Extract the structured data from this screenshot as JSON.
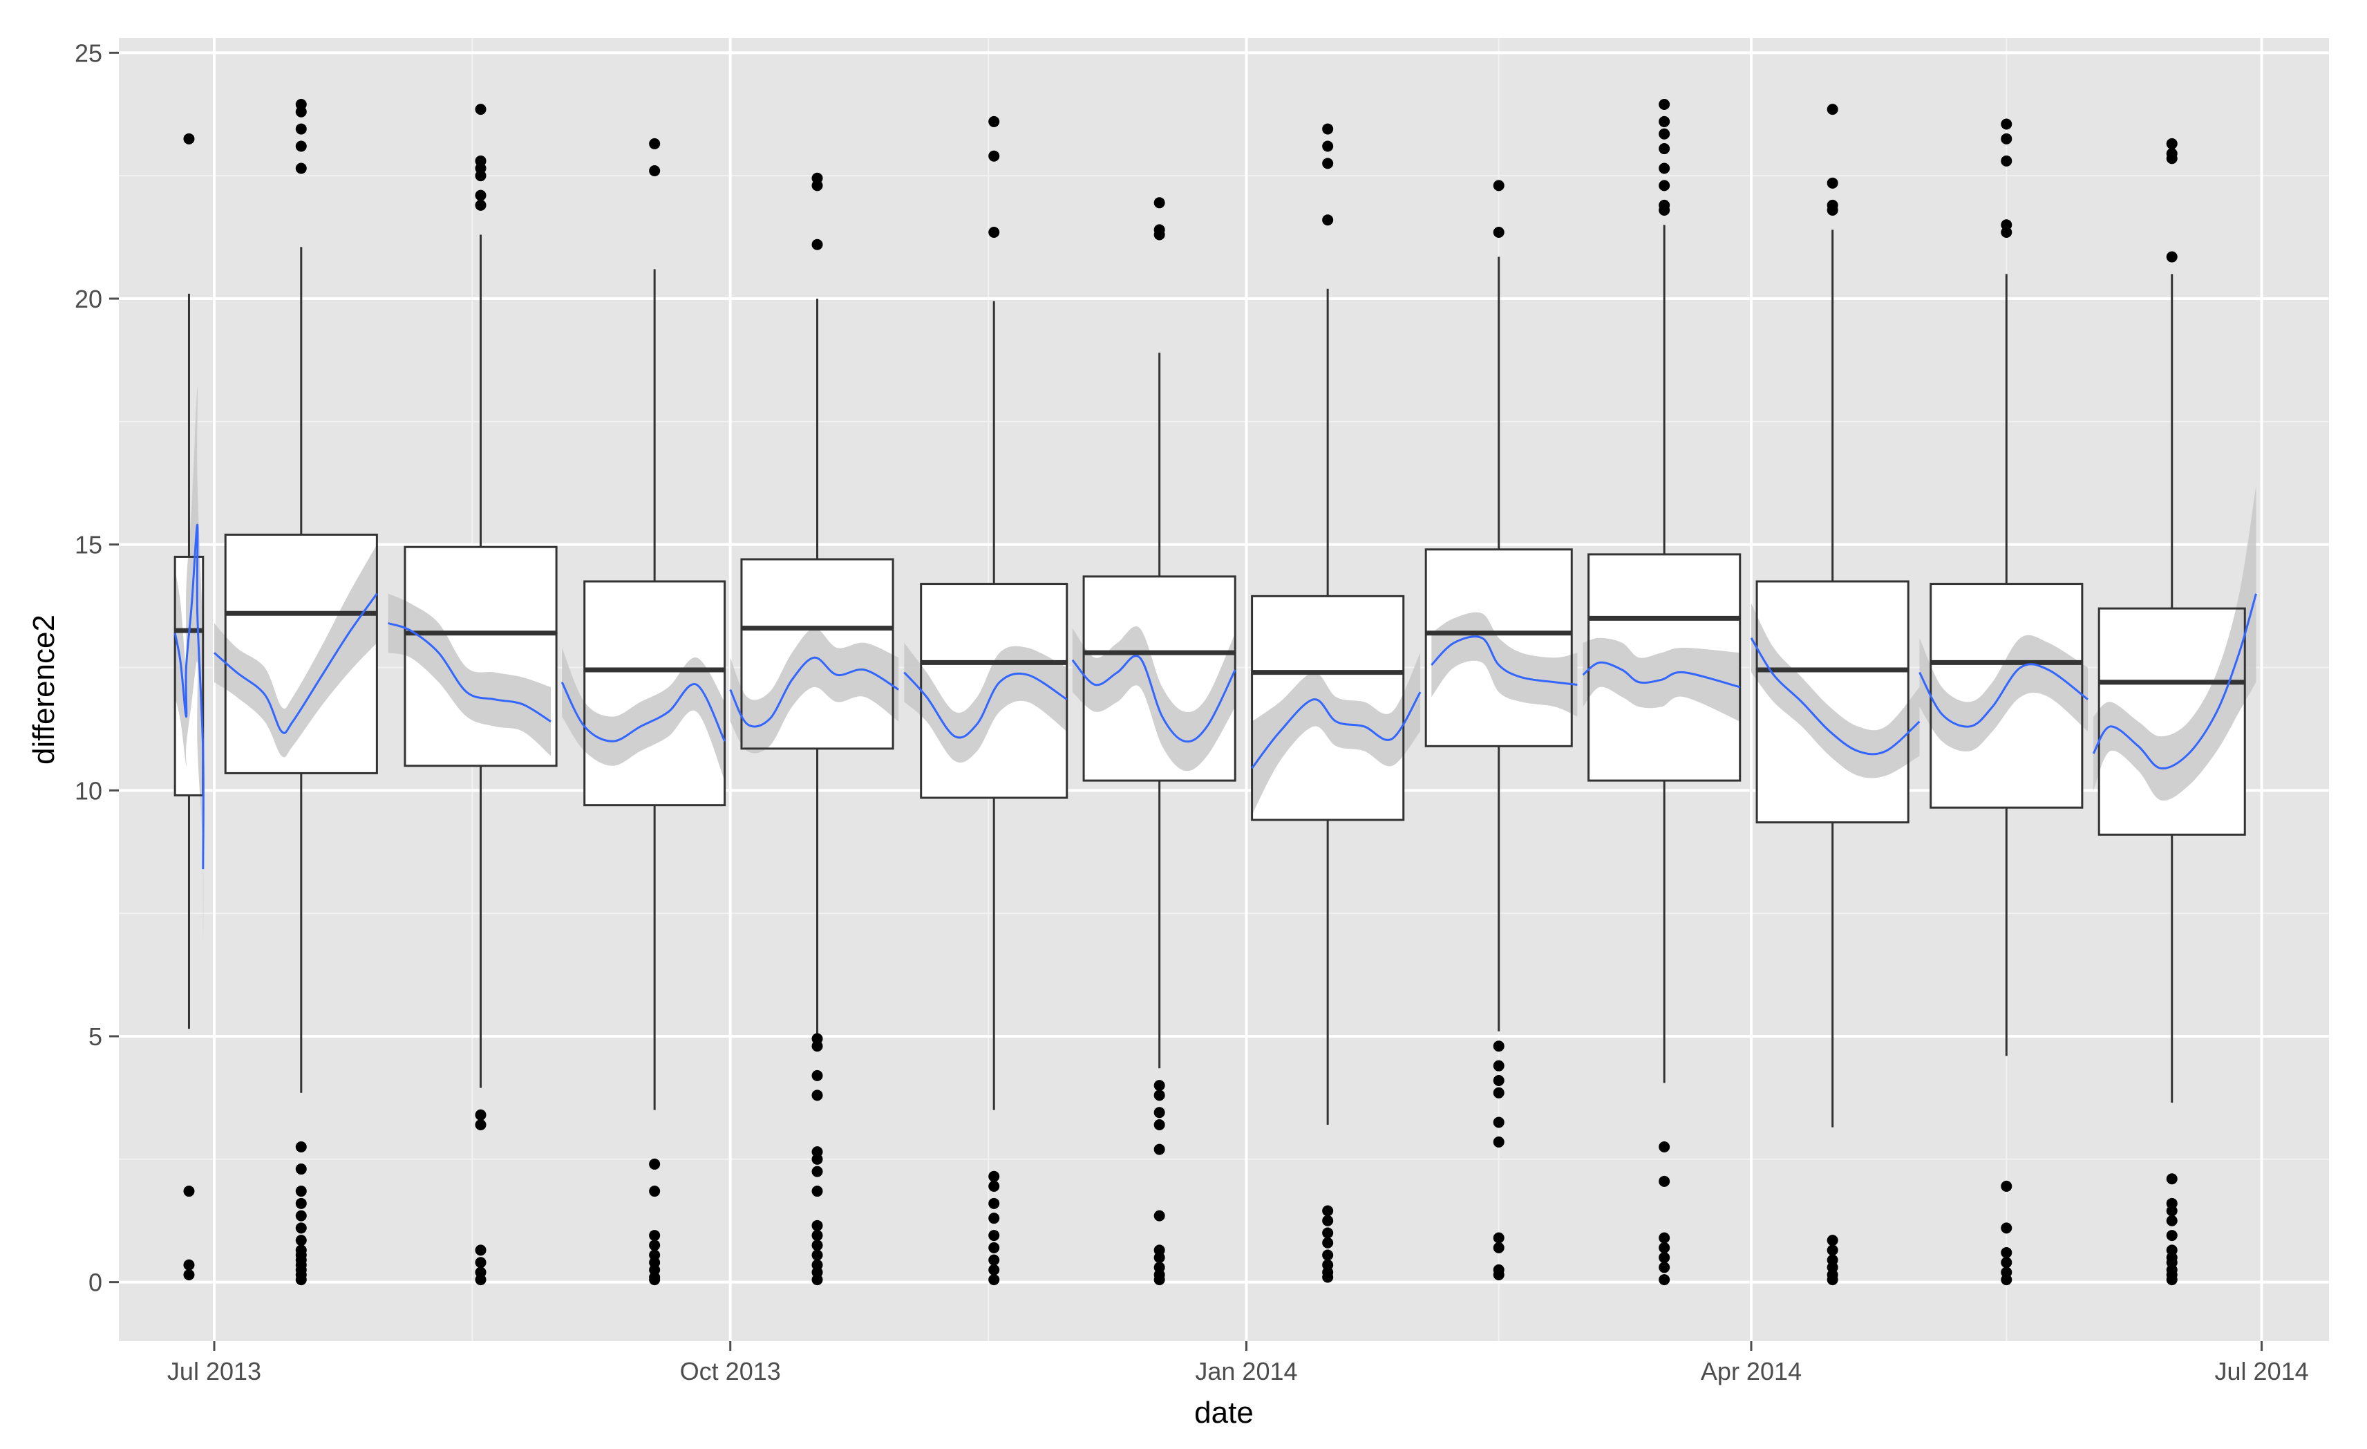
{
  "chart_data": {
    "type": "box",
    "title": "",
    "xlabel": "date",
    "ylabel": "difference2",
    "x_axis_type": "date",
    "xlim": [
      "2013-06-14",
      "2014-07-13"
    ],
    "ylim": [
      -1.2,
      25.3
    ],
    "grid": true,
    "legend": "none",
    "x_ticks": [
      {
        "date": "2013-07-01",
        "label": "Jul 2013"
      },
      {
        "date": "2013-10-01",
        "label": "Oct 2013"
      },
      {
        "date": "2014-01-01",
        "label": "Jan 2014"
      },
      {
        "date": "2014-04-01",
        "label": "Apr 2014"
      },
      {
        "date": "2014-07-01",
        "label": "Jul 2014"
      }
    ],
    "y_ticks": [
      0,
      5,
      10,
      15,
      20,
      25
    ],
    "boxes": [
      {
        "x_start": "2013-06-24",
        "x_end": "2013-06-29",
        "q1": 9.9,
        "median": 13.25,
        "q3": 14.75,
        "whisker_low": 5.15,
        "whisker_high": 20.1,
        "outliers": [
          23.25,
          1.85,
          0.35,
          0.15
        ]
      },
      {
        "x_start": "2013-07-03",
        "x_end": "2013-07-30",
        "q1": 10.35,
        "median": 13.6,
        "q3": 15.2,
        "whisker_low": 3.85,
        "whisker_high": 21.05,
        "outliers": [
          23.95,
          23.8,
          23.45,
          23.1,
          22.65,
          2.75,
          2.3,
          1.85,
          1.6,
          1.35,
          1.1,
          0.85,
          0.65,
          0.55,
          0.45,
          0.35,
          0.25,
          0.15,
          0.05
        ]
      },
      {
        "x_start": "2013-08-04",
        "x_end": "2013-08-31",
        "q1": 10.5,
        "median": 13.2,
        "q3": 14.95,
        "whisker_low": 3.95,
        "whisker_high": 21.3,
        "outliers": [
          23.85,
          22.8,
          22.65,
          22.5,
          22.1,
          21.9,
          3.4,
          3.2,
          0.65,
          0.4,
          0.2,
          0.05
        ]
      },
      {
        "x_start": "2013-09-05",
        "x_end": "2013-09-30",
        "q1": 9.7,
        "median": 12.45,
        "q3": 14.25,
        "whisker_low": 3.5,
        "whisker_high": 20.6,
        "outliers": [
          23.15,
          22.6,
          2.4,
          1.85,
          0.95,
          0.75,
          0.55,
          0.4,
          0.25,
          0.1,
          0.05
        ]
      },
      {
        "x_start": "2013-10-03",
        "x_end": "2013-10-30",
        "q1": 10.85,
        "median": 13.3,
        "q3": 14.7,
        "whisker_low": 5.0,
        "whisker_high": 20.0,
        "outliers": [
          22.45,
          22.3,
          21.1,
          4.95,
          4.8,
          4.2,
          3.8,
          2.65,
          2.5,
          2.25,
          1.85,
          1.15,
          0.95,
          0.75,
          0.55,
          0.35,
          0.2,
          0.05
        ]
      },
      {
        "x_start": "2013-11-04",
        "x_end": "2013-11-30",
        "q1": 9.85,
        "median": 12.6,
        "q3": 14.2,
        "whisker_low": 3.5,
        "whisker_high": 19.95,
        "outliers": [
          23.6,
          22.9,
          21.35,
          2.15,
          1.95,
          1.6,
          1.3,
          0.95,
          0.7,
          0.45,
          0.25,
          0.05
        ]
      },
      {
        "x_start": "2013-12-03",
        "x_end": "2013-12-30",
        "q1": 10.2,
        "median": 12.8,
        "q3": 14.35,
        "whisker_low": 4.35,
        "whisker_high": 18.9,
        "outliers": [
          21.95,
          21.4,
          21.3,
          4.0,
          3.8,
          3.45,
          3.2,
          2.7,
          1.35,
          0.65,
          0.5,
          0.3,
          0.15,
          0.05
        ]
      },
      {
        "x_start": "2014-01-02",
        "x_end": "2014-01-29",
        "q1": 9.4,
        "median": 12.4,
        "q3": 13.95,
        "whisker_low": 3.2,
        "whisker_high": 20.2,
        "outliers": [
          23.45,
          23.1,
          22.75,
          21.6,
          1.45,
          1.25,
          1.0,
          0.8,
          0.55,
          0.35,
          0.2,
          0.1
        ]
      },
      {
        "x_start": "2014-02-02",
        "x_end": "2014-02-28",
        "q1": 10.9,
        "median": 13.2,
        "q3": 14.9,
        "whisker_low": 5.1,
        "whisker_high": 20.85,
        "outliers": [
          22.3,
          21.35,
          4.8,
          4.4,
          4.1,
          3.85,
          3.25,
          2.85,
          0.9,
          0.7,
          0.25,
          0.15
        ]
      },
      {
        "x_start": "2014-03-03",
        "x_end": "2014-03-30",
        "q1": 10.2,
        "median": 13.5,
        "q3": 14.8,
        "whisker_low": 4.05,
        "whisker_high": 21.5,
        "outliers": [
          23.95,
          23.6,
          23.35,
          23.05,
          22.65,
          22.3,
          21.9,
          21.8,
          2.75,
          2.05,
          0.9,
          0.7,
          0.5,
          0.3,
          0.05
        ]
      },
      {
        "x_start": "2014-04-02",
        "x_end": "2014-04-29",
        "q1": 9.35,
        "median": 12.45,
        "q3": 14.25,
        "whisker_low": 3.15,
        "whisker_high": 21.4,
        "outliers": [
          23.85,
          22.35,
          21.9,
          21.8,
          0.85,
          0.65,
          0.45,
          0.3,
          0.15,
          0.05
        ]
      },
      {
        "x_start": "2014-05-03",
        "x_end": "2014-05-30",
        "q1": 9.65,
        "median": 12.6,
        "q3": 14.2,
        "whisker_low": 4.6,
        "whisker_high": 20.5,
        "outliers": [
          23.55,
          23.25,
          22.8,
          21.5,
          21.35,
          1.95,
          1.1,
          0.6,
          0.4,
          0.2,
          0.05
        ]
      },
      {
        "x_start": "2014-06-02",
        "x_end": "2014-06-28",
        "q1": 9.1,
        "median": 12.2,
        "q3": 13.7,
        "whisker_low": 3.65,
        "whisker_high": 20.5,
        "outliers": [
          23.15,
          22.95,
          22.85,
          20.85,
          2.1,
          1.6,
          1.45,
          1.25,
          0.95,
          0.65,
          0.5,
          0.4,
          0.25,
          0.15,
          0.05
        ]
      }
    ],
    "smooth_series": [
      {
        "points": [
          [
            "2013-06-24",
            13.2
          ],
          [
            "2013-06-25",
            12.6
          ],
          [
            "2013-06-26",
            11.5
          ],
          [
            "2013-06-26",
            12.5
          ],
          [
            "2013-06-27",
            13.8
          ],
          [
            "2013-06-28",
            15.4
          ],
          [
            "2013-06-28",
            13.6
          ],
          [
            "2013-06-29",
            10.8
          ],
          [
            "2013-06-29",
            8.4
          ]
        ],
        "lower": [
          11.9,
          11.4,
          10.5,
          10.9,
          11.8,
          12.6,
          10.9,
          8.7,
          6.7
        ],
        "upper": [
          14.5,
          13.8,
          12.5,
          14.1,
          15.8,
          18.2,
          16.3,
          12.9,
          10.1
        ]
      },
      {
        "points": [
          [
            "2013-07-01",
            12.8
          ],
          [
            "2013-07-05",
            12.4
          ],
          [
            "2013-07-10",
            11.95
          ],
          [
            "2013-07-13",
            11.2
          ],
          [
            "2013-07-15",
            11.4
          ],
          [
            "2013-07-20",
            12.3
          ],
          [
            "2013-07-25",
            13.2
          ],
          [
            "2013-07-30",
            14.0
          ]
        ],
        "lower": [
          12.2,
          11.9,
          11.4,
          10.7,
          10.9,
          11.7,
          12.4,
          13.0
        ],
        "upper": [
          13.4,
          12.9,
          12.5,
          11.7,
          11.9,
          12.9,
          14.0,
          15.0
        ]
      },
      {
        "points": [
          [
            "2013-08-01",
            13.4
          ],
          [
            "2013-08-05",
            13.25
          ],
          [
            "2013-08-10",
            12.8
          ],
          [
            "2013-08-15",
            12.0
          ],
          [
            "2013-08-20",
            11.85
          ],
          [
            "2013-08-25",
            11.75
          ],
          [
            "2013-08-30",
            11.4
          ]
        ],
        "lower": [
          12.8,
          12.7,
          12.2,
          11.5,
          11.3,
          11.2,
          10.7
        ],
        "upper": [
          14.0,
          13.8,
          13.4,
          12.5,
          12.4,
          12.3,
          12.1
        ]
      },
      {
        "points": [
          [
            "2013-09-01",
            12.2
          ],
          [
            "2013-09-05",
            11.3
          ],
          [
            "2013-09-10",
            11.0
          ],
          [
            "2013-09-15",
            11.3
          ],
          [
            "2013-09-20",
            11.6
          ],
          [
            "2013-09-25",
            12.15
          ],
          [
            "2013-09-30",
            11.0
          ]
        ],
        "lower": [
          11.5,
          10.8,
          10.5,
          10.8,
          11.1,
          11.6,
          10.2
        ],
        "upper": [
          12.9,
          11.8,
          11.5,
          11.8,
          12.1,
          12.7,
          11.8
        ]
      },
      {
        "points": [
          [
            "2013-10-01",
            12.05
          ],
          [
            "2013-10-04",
            11.35
          ],
          [
            "2013-10-08",
            11.45
          ],
          [
            "2013-10-12",
            12.25
          ],
          [
            "2013-10-16",
            12.7
          ],
          [
            "2013-10-20",
            12.35
          ],
          [
            "2013-10-25",
            12.45
          ],
          [
            "2013-10-31",
            12.05
          ]
        ],
        "lower": [
          11.4,
          10.8,
          10.9,
          11.7,
          12.1,
          11.8,
          11.9,
          11.4
        ],
        "upper": [
          12.7,
          11.9,
          12.0,
          12.8,
          13.3,
          12.9,
          13.0,
          12.7
        ]
      },
      {
        "points": [
          [
            "2013-11-01",
            12.4
          ],
          [
            "2013-11-05",
            11.9
          ],
          [
            "2013-11-10",
            11.1
          ],
          [
            "2013-11-14",
            11.35
          ],
          [
            "2013-11-18",
            12.2
          ],
          [
            "2013-11-23",
            12.35
          ],
          [
            "2013-11-30",
            11.85
          ]
        ],
        "lower": [
          11.8,
          11.4,
          10.6,
          10.8,
          11.6,
          11.8,
          11.2
        ],
        "upper": [
          13.0,
          12.4,
          11.6,
          11.9,
          12.8,
          12.9,
          12.5
        ]
      },
      {
        "points": [
          [
            "2013-12-01",
            12.65
          ],
          [
            "2013-12-05",
            12.15
          ],
          [
            "2013-12-09",
            12.4
          ],
          [
            "2013-12-13",
            12.7
          ],
          [
            "2013-12-17",
            11.5
          ],
          [
            "2013-12-21",
            11.0
          ],
          [
            "2013-12-25",
            11.3
          ],
          [
            "2013-12-30",
            12.45
          ]
        ],
        "lower": [
          12.0,
          11.6,
          11.8,
          12.1,
          10.9,
          10.4,
          10.7,
          11.7
        ],
        "upper": [
          13.3,
          12.7,
          13.0,
          13.3,
          12.1,
          11.6,
          11.9,
          13.2
        ]
      },
      {
        "points": [
          [
            "2014-01-02",
            10.45
          ],
          [
            "2014-01-07",
            11.2
          ],
          [
            "2014-01-13",
            11.85
          ],
          [
            "2014-01-17",
            11.4
          ],
          [
            "2014-01-22",
            11.3
          ],
          [
            "2014-01-27",
            11.05
          ],
          [
            "2014-02-01",
            12.0
          ]
        ],
        "lower": [
          9.5,
          10.6,
          11.3,
          10.9,
          10.8,
          10.5,
          11.2
        ],
        "upper": [
          11.4,
          11.8,
          12.4,
          11.9,
          11.8,
          11.6,
          12.8
        ]
      },
      {
        "points": [
          [
            "2014-02-03",
            12.55
          ],
          [
            "2014-02-07",
            13.0
          ],
          [
            "2014-02-12",
            13.1
          ],
          [
            "2014-02-15",
            12.55
          ],
          [
            "2014-02-19",
            12.3
          ],
          [
            "2014-02-25",
            12.2
          ],
          [
            "2014-03-01",
            12.15
          ]
        ],
        "lower": [
          11.9,
          12.5,
          12.6,
          12.0,
          11.8,
          11.7,
          11.5
        ],
        "upper": [
          13.2,
          13.5,
          13.6,
          13.1,
          12.8,
          12.7,
          12.8
        ]
      },
      {
        "points": [
          [
            "2014-03-02",
            12.35
          ],
          [
            "2014-03-05",
            12.6
          ],
          [
            "2014-03-09",
            12.45
          ],
          [
            "2014-03-12",
            12.2
          ],
          [
            "2014-03-16",
            12.25
          ],
          [
            "2014-03-20",
            12.4
          ],
          [
            "2014-03-30",
            12.1
          ]
        ],
        "lower": [
          11.7,
          12.1,
          11.9,
          11.7,
          11.7,
          11.9,
          11.4
        ],
        "upper": [
          13.0,
          13.1,
          13.0,
          12.7,
          12.8,
          12.9,
          12.8
        ]
      },
      {
        "points": [
          [
            "2014-04-01",
            13.1
          ],
          [
            "2014-04-05",
            12.35
          ],
          [
            "2014-04-10",
            11.8
          ],
          [
            "2014-04-15",
            11.2
          ],
          [
            "2014-04-20",
            10.8
          ],
          [
            "2014-04-25",
            10.8
          ],
          [
            "2014-05-01",
            11.4
          ]
        ],
        "lower": [
          12.4,
          11.8,
          11.3,
          10.7,
          10.3,
          10.3,
          10.7
        ],
        "upper": [
          13.8,
          12.9,
          12.3,
          11.7,
          11.3,
          11.3,
          12.1
        ]
      },
      {
        "points": [
          [
            "2014-05-01",
            12.4
          ],
          [
            "2014-05-05",
            11.55
          ],
          [
            "2014-05-10",
            11.3
          ],
          [
            "2014-05-14",
            11.7
          ],
          [
            "2014-05-19",
            12.5
          ],
          [
            "2014-05-24",
            12.45
          ],
          [
            "2014-05-31",
            11.85
          ]
        ],
        "lower": [
          11.7,
          11.0,
          10.8,
          11.2,
          11.9,
          11.9,
          11.2
        ],
        "upper": [
          13.1,
          12.1,
          11.8,
          12.2,
          13.1,
          13.0,
          12.5
        ]
      },
      {
        "points": [
          [
            "2014-06-01",
            10.75
          ],
          [
            "2014-06-04",
            11.3
          ],
          [
            "2014-06-09",
            10.9
          ],
          [
            "2014-06-13",
            10.45
          ],
          [
            "2014-06-18",
            10.75
          ],
          [
            "2014-06-23",
            11.6
          ],
          [
            "2014-06-27",
            12.8
          ],
          [
            "2014-06-30",
            14.0
          ]
        ],
        "lower": [
          10.0,
          10.8,
          10.4,
          9.8,
          10.1,
          10.8,
          11.6,
          12.2
        ],
        "upper": [
          11.5,
          11.8,
          11.4,
          11.1,
          11.4,
          12.4,
          14.0,
          16.2
        ]
      }
    ],
    "colors": {
      "panel_background": "#e5e5e5",
      "grid_major": "#ffffff",
      "grid_minor": "#f2f2f2",
      "box_fill": "#ffffff",
      "box_line": "#333333",
      "outlier": "#000000",
      "smooth_line": "#3366ff",
      "ribbon": "#c8c8c8",
      "tick_text": "#4d4d4d",
      "axis_title": "#000000"
    }
  }
}
